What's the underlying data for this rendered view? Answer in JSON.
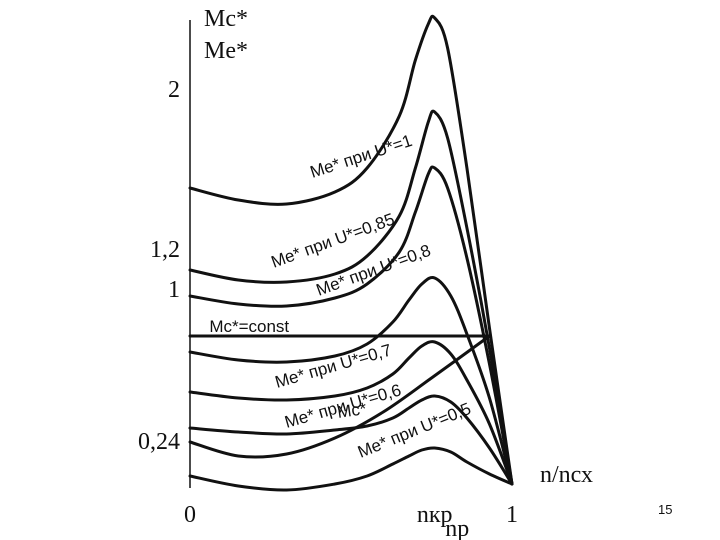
{
  "chart_data": {
    "type": "line",
    "ylabel": "Mc*",
    "ylabel2": "Me*",
    "xlabel": "n/nсх",
    "y_ticks": [
      {
        "value": 2,
        "label": "2"
      },
      {
        "value": 1.2,
        "label": "1,2"
      },
      {
        "value": 1,
        "label": "1"
      },
      {
        "value": 0.24,
        "label": "0,24"
      }
    ],
    "x_ticks": [
      {
        "value": 0,
        "label": "0"
      },
      {
        "value": 0.76,
        "label": "nкр"
      },
      {
        "value": 0.83,
        "label": "nр"
      },
      {
        "value": 1,
        "label": "1"
      }
    ],
    "ylim": [
      0,
      2.3
    ],
    "xlim": [
      0,
      1.1
    ],
    "series": [
      {
        "name": "Me* при U*=1",
        "color": "#111111",
        "x": [
          0,
          0.15,
          0.3,
          0.45,
          0.55,
          0.65,
          0.7,
          0.74,
          0.76,
          0.8,
          0.86,
          0.93,
          1.0
        ],
        "y": [
          1.5,
          1.44,
          1.42,
          1.48,
          1.6,
          1.86,
          2.14,
          2.32,
          2.35,
          2.2,
          1.6,
          0.8,
          0.02
        ]
      },
      {
        "name": "Me* при U*=0,85",
        "color": "#111111",
        "x": [
          0,
          0.15,
          0.3,
          0.45,
          0.55,
          0.65,
          0.7,
          0.74,
          0.76,
          0.8,
          0.86,
          0.93,
          1.0
        ],
        "y": [
          1.09,
          1.04,
          1.03,
          1.07,
          1.16,
          1.36,
          1.6,
          1.83,
          1.88,
          1.75,
          1.3,
          0.7,
          0.02
        ]
      },
      {
        "name": "Me* при U*=0,8",
        "color": "#111111",
        "x": [
          0,
          0.15,
          0.3,
          0.45,
          0.55,
          0.65,
          0.7,
          0.74,
          0.76,
          0.8,
          0.86,
          0.93,
          1.0
        ],
        "y": [
          0.96,
          0.92,
          0.91,
          0.95,
          1.02,
          1.18,
          1.38,
          1.57,
          1.6,
          1.5,
          1.15,
          0.62,
          0.02
        ]
      },
      {
        "name": "",
        "color": "#111111",
        "x": [
          0,
          0.15,
          0.3,
          0.45,
          0.55,
          0.63,
          0.68,
          0.72,
          0.76,
          0.81,
          0.86,
          0.93,
          1.0
        ],
        "y": [
          0.68,
          0.64,
          0.63,
          0.66,
          0.72,
          0.83,
          0.94,
          1.02,
          1.05,
          0.96,
          0.77,
          0.45,
          0.02
        ]
      },
      {
        "name": "Me* при U*=0,7",
        "color": "#111111",
        "x": [
          0,
          0.15,
          0.3,
          0.45,
          0.55,
          0.63,
          0.68,
          0.72,
          0.76,
          0.81,
          0.86,
          0.93,
          1.0
        ],
        "y": [
          0.48,
          0.45,
          0.44,
          0.46,
          0.5,
          0.57,
          0.65,
          0.71,
          0.73,
          0.67,
          0.54,
          0.32,
          0.02
        ]
      },
      {
        "name": "Me* при U*=0,6",
        "color": "#111111",
        "x": [
          0,
          0.15,
          0.3,
          0.45,
          0.55,
          0.63,
          0.68,
          0.72,
          0.76,
          0.81,
          0.86,
          0.93,
          1.0
        ],
        "y": [
          0.3,
          0.28,
          0.27,
          0.29,
          0.31,
          0.35,
          0.4,
          0.44,
          0.46,
          0.43,
          0.35,
          0.2,
          0.02
        ]
      },
      {
        "name": "Me* при U*=0,5",
        "color": "#111111",
        "x": [
          0,
          0.15,
          0.3,
          0.45,
          0.55,
          0.63,
          0.68,
          0.72,
          0.76,
          0.81,
          0.86,
          0.93,
          1.0
        ],
        "y": [
          0.06,
          0.01,
          -0.01,
          0.02,
          0.06,
          0.12,
          0.16,
          0.19,
          0.2,
          0.18,
          0.13,
          0.07,
          0.02
        ]
      },
      {
        "name": "Mc*=const",
        "color": "#111111",
        "x": [
          0,
          0.93
        ],
        "y": [
          0.76,
          0.76
        ]
      },
      {
        "name": "Mc*",
        "color": "#111111",
        "x": [
          0,
          0.15,
          0.3,
          0.45,
          0.6,
          0.75,
          0.93
        ],
        "y": [
          0.23,
          0.16,
          0.17,
          0.25,
          0.38,
          0.55,
          0.76
        ]
      }
    ],
    "curve_labels": [
      {
        "text": "Me* при U*=1",
        "x": 0.38,
        "y": 1.55,
        "angle": -18
      },
      {
        "text": "Me* при U*=0,85",
        "x": 0.26,
        "y": 1.1,
        "angle": -20
      },
      {
        "text": "Me* при U*=0,8",
        "x": 0.4,
        "y": 0.96,
        "angle": -20
      },
      {
        "text": "Mc*=const",
        "x": 0.06,
        "y": 0.78,
        "angle": 0
      },
      {
        "text": "Me* при U*=0,7",
        "x": 0.27,
        "y": 0.5,
        "angle": -16
      },
      {
        "text": "Me* при U*=0,6",
        "x": 0.3,
        "y": 0.3,
        "angle": -16
      },
      {
        "text": "Mc*",
        "x": 0.46,
        "y": 0.35,
        "angle": -8
      },
      {
        "text": "Me* при U*=0,5",
        "x": 0.53,
        "y": 0.15,
        "angle": -22
      }
    ]
  },
  "page_number": "15"
}
